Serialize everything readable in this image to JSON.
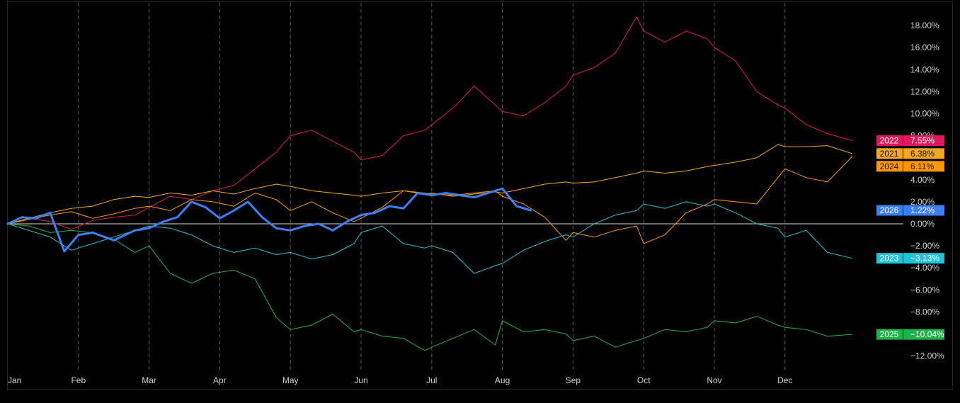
{
  "chart_data": {
    "type": "line",
    "title": "",
    "xlabel": "",
    "ylabel": "",
    "ylim": [
      -13,
      19
    ],
    "y_ticks": [
      "18.00%",
      "16.00%",
      "14.00%",
      "12.00%",
      "10.00%",
      "8.00%",
      "4.00%",
      "2.00%",
      "0.00%",
      "−2.00%",
      "−4.00%",
      "−6.00%",
      "−8.00%",
      "−12.00%"
    ],
    "y_tick_values": [
      18,
      16,
      14,
      12,
      10,
      8,
      4,
      2,
      0,
      -2,
      -4,
      -6,
      -8,
      -12
    ],
    "x_ticks": [
      "Jan",
      "Feb",
      "Mar",
      "Apr",
      "May",
      "Jun",
      "Jul",
      "Aug",
      "Sep",
      "Oct",
      "Nov",
      "Dec"
    ],
    "x_unit": "month",
    "grid": "vertical dashed month lines",
    "zero_line": true,
    "series": [
      {
        "name": "2022",
        "color": "#e0195f",
        "label": "7.55%",
        "x": [
          0,
          0.3,
          0.6,
          0.9,
          1.2,
          1.5,
          1.8,
          2.0,
          2.3,
          2.6,
          2.9,
          3.2,
          3.5,
          3.8,
          4.0,
          4.3,
          4.6,
          4.9,
          5.0,
          5.3,
          5.6,
          5.9,
          6.0,
          6.3,
          6.6,
          6.9,
          7.0,
          7.3,
          7.6,
          7.9,
          8.0,
          8.3,
          8.6,
          8.9,
          9.0,
          9.3,
          9.6,
          9.9,
          10.0,
          10.3,
          10.6,
          10.9,
          11.0,
          11.3,
          11.6,
          11.95
        ],
        "y": [
          0,
          0.5,
          0.2,
          -0.5,
          0.3,
          0.6,
          0.8,
          1.5,
          2.5,
          2.2,
          3.0,
          3.5,
          5.0,
          6.5,
          8.0,
          8.5,
          7.5,
          6.5,
          5.8,
          6.2,
          8.0,
          8.5,
          9.0,
          10.5,
          12.5,
          10.8,
          10.2,
          9.8,
          11.0,
          12.5,
          13.5,
          14.2,
          15.5,
          18.8,
          17.5,
          16.5,
          17.5,
          16.8,
          16.0,
          14.8,
          12.0,
          10.8,
          10.5,
          9.0,
          8.2,
          7.55
        ]
      },
      {
        "name": "2021",
        "color": "#f5a623",
        "label": "6.38%",
        "x": [
          0,
          0.3,
          0.6,
          0.9,
          1.2,
          1.5,
          1.8,
          2.0,
          2.3,
          2.6,
          2.9,
          3.2,
          3.5,
          3.8,
          4.0,
          4.3,
          4.6,
          4.9,
          5.0,
          5.3,
          5.6,
          5.9,
          6.0,
          6.3,
          6.6,
          6.9,
          7.0,
          7.3,
          7.6,
          7.9,
          8.0,
          8.3,
          8.6,
          8.9,
          9.0,
          9.3,
          9.6,
          9.9,
          10.0,
          10.3,
          10.6,
          10.9,
          11.0,
          11.3,
          11.6,
          11.95
        ],
        "y": [
          0,
          0.5,
          1.0,
          1.4,
          1.6,
          2.2,
          2.5,
          2.4,
          2.8,
          2.6,
          3.0,
          2.7,
          3.2,
          3.6,
          3.4,
          3.0,
          2.8,
          2.6,
          2.5,
          2.8,
          3.0,
          2.7,
          2.8,
          2.5,
          2.7,
          2.9,
          2.8,
          3.2,
          3.6,
          3.8,
          3.7,
          3.8,
          4.2,
          4.6,
          4.8,
          4.6,
          4.8,
          5.2,
          5.3,
          5.6,
          6.0,
          7.2,
          7.0,
          7.0,
          7.1,
          6.38
        ]
      },
      {
        "name": "2024",
        "color": "#ff9800",
        "label": "6.11%",
        "x": [
          0,
          0.3,
          0.6,
          0.9,
          1.2,
          1.5,
          1.8,
          2.0,
          2.3,
          2.6,
          2.9,
          3.2,
          3.5,
          3.8,
          4.0,
          4.3,
          4.6,
          4.9,
          5.0,
          5.3,
          5.6,
          5.9,
          6.0,
          6.3,
          6.6,
          6.9,
          7.0,
          7.3,
          7.6,
          7.9,
          8.0,
          8.3,
          8.6,
          8.9,
          9.0,
          9.3,
          9.6,
          9.9,
          10.0,
          10.3,
          10.6,
          10.9,
          11.0,
          11.3,
          11.6,
          11.95
        ],
        "y": [
          0,
          0.4,
          0.8,
          1.1,
          0.5,
          0.9,
          1.4,
          1.6,
          1.2,
          2.2,
          2.0,
          1.6,
          2.8,
          2.2,
          1.2,
          2.0,
          1.0,
          0.2,
          0.5,
          1.5,
          3.0,
          2.8,
          2.7,
          2.6,
          2.8,
          3.0,
          2.5,
          1.8,
          0.6,
          -1.5,
          -0.8,
          -1.2,
          -0.6,
          -0.2,
          -1.8,
          -1.0,
          1.0,
          1.8,
          2.2,
          2.0,
          1.8,
          4.2,
          5.0,
          4.2,
          3.8,
          6.11
        ]
      },
      {
        "name": "2026",
        "color": "#3b7ff5",
        "label": "1.22%",
        "x": [
          0,
          0.2,
          0.4,
          0.6,
          0.8,
          1.0,
          1.2,
          1.5,
          1.8,
          2.0,
          2.2,
          2.4,
          2.6,
          2.8,
          3.0,
          3.2,
          3.4,
          3.6,
          3.8,
          4.0,
          4.2,
          4.4,
          4.6,
          4.8,
          5.0,
          5.2,
          5.4,
          5.6,
          5.8,
          6.0,
          6.2,
          6.4,
          6.6,
          6.8,
          7.0,
          7.2,
          7.4
        ],
        "y": [
          0,
          0.6,
          0.5,
          1.0,
          -2.5,
          -1.0,
          -0.8,
          -1.5,
          -0.6,
          -0.4,
          0.2,
          0.6,
          2.0,
          1.5,
          0.5,
          1.2,
          2.0,
          0.6,
          -0.4,
          -0.6,
          -0.2,
          0.0,
          -0.6,
          0.2,
          0.8,
          1.0,
          1.6,
          1.4,
          2.8,
          2.6,
          2.8,
          2.6,
          2.4,
          2.8,
          3.2,
          1.6,
          1.22
        ]
      },
      {
        "name": "2023",
        "color": "#22c3d6",
        "label": "−3.13%",
        "x": [
          0,
          0.3,
          0.6,
          0.9,
          1.2,
          1.5,
          1.8,
          2.0,
          2.3,
          2.6,
          2.9,
          3.2,
          3.5,
          3.8,
          4.0,
          4.3,
          4.6,
          4.9,
          5.0,
          5.3,
          5.6,
          5.9,
          6.0,
          6.3,
          6.6,
          6.9,
          7.0,
          7.3,
          7.6,
          7.9,
          8.0,
          8.3,
          8.6,
          8.9,
          9.0,
          9.3,
          9.6,
          9.9,
          10.0,
          10.3,
          10.6,
          10.9,
          11.0,
          11.3,
          11.6,
          11.95
        ],
        "y": [
          0,
          -0.6,
          -1.2,
          -2.4,
          -1.8,
          -1.2,
          -0.6,
          -0.2,
          -0.4,
          -1.0,
          -2.0,
          -2.6,
          -2.2,
          -2.8,
          -2.6,
          -3.2,
          -2.8,
          -1.8,
          -0.8,
          -0.2,
          -1.8,
          -2.2,
          -2.0,
          -2.6,
          -4.5,
          -3.8,
          -3.6,
          -2.4,
          -1.6,
          -1.0,
          -1.2,
          0.0,
          0.8,
          1.2,
          1.8,
          1.4,
          2.0,
          1.6,
          1.8,
          1.0,
          0.0,
          -0.4,
          -1.2,
          -0.6,
          -2.6,
          -3.13
        ]
      },
      {
        "name": "2025",
        "color": "#1fb14a",
        "label": "−10.04%",
        "x": [
          0,
          0.3,
          0.6,
          0.9,
          1.2,
          1.5,
          1.8,
          2.0,
          2.3,
          2.6,
          2.9,
          3.2,
          3.5,
          3.8,
          4.0,
          4.3,
          4.6,
          4.9,
          5.0,
          5.3,
          5.6,
          5.9,
          6.0,
          6.3,
          6.6,
          6.9,
          7.0,
          7.3,
          7.6,
          7.9,
          8.0,
          8.3,
          8.6,
          8.9,
          9.0,
          9.3,
          9.6,
          9.9,
          10.0,
          10.3,
          10.6,
          10.9,
          11.0,
          11.3,
          11.6,
          11.95
        ],
        "y": [
          0,
          -0.2,
          -0.8,
          -0.6,
          -0.8,
          -1.4,
          -2.6,
          -2.0,
          -4.5,
          -5.4,
          -4.5,
          -4.2,
          -5.0,
          -8.5,
          -9.6,
          -9.2,
          -8.2,
          -9.8,
          -9.6,
          -10.2,
          -10.4,
          -11.5,
          -11.2,
          -10.4,
          -9.6,
          -11.0,
          -8.8,
          -9.8,
          -9.6,
          -10.0,
          -10.6,
          -10.2,
          -11.2,
          -10.6,
          -10.4,
          -9.6,
          -9.8,
          -9.4,
          -8.8,
          -9.0,
          -8.4,
          -9.2,
          -9.4,
          -9.6,
          -10.2,
          -10.04
        ]
      }
    ]
  }
}
